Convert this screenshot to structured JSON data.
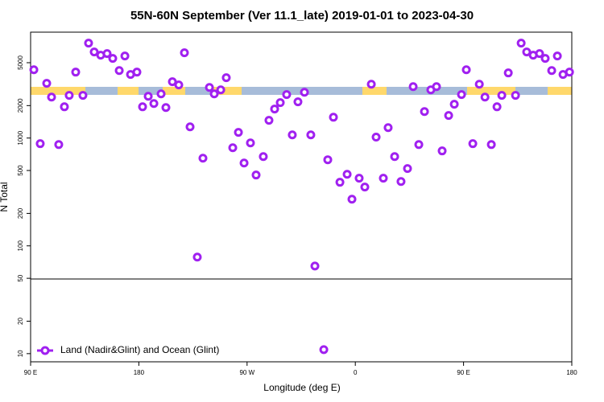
{
  "chart_data": {
    "type": "scatter",
    "title": "55N-60N September (Ver 11.1_late)   2019-01-01 to 2023-04-30",
    "x_label": "Longitude (deg E)",
    "y_label": "N Total",
    "log_y": true,
    "xlim": [
      90,
      540
    ],
    "xticks": [
      {
        "value": 90,
        "label": "90 E"
      },
      180,
      {
        "value": 270,
        "label": "90 W"
      },
      {
        "value": 360,
        "label": "0"
      },
      {
        "value": 450,
        "label": "90 E"
      },
      {
        "value": 540,
        "label": "180"
      }
    ],
    "ylim": [
      8.4,
      9600
    ],
    "yticks": [
      10,
      20,
      50,
      100,
      200,
      500,
      1000,
      2000,
      5000
    ],
    "legend": "bottom-left",
    "series": [
      {
        "name": "Land (Nadir&Glint) and Ocean (Glint)",
        "color": "#a020f0",
        "x": [
          92.7,
          98.0,
          103.4,
          107.4,
          113.4,
          118.1,
          122.1,
          127.5,
          133.5,
          138.2,
          142.9,
          148.3,
          153.6,
          158.3,
          163.7,
          168.4,
          173.1,
          178.4,
          183.1,
          187.8,
          192.5,
          198.5,
          202.5,
          207.9,
          213.2,
          217.9,
          222.6,
          228.6,
          233.3,
          238.7,
          242.7,
          248.1,
          252.7,
          258.1,
          262.8,
          267.5,
          272.8,
          277.5,
          283.5,
          288.2,
          292.9,
          297.6,
          302.9,
          307.6,
          312.3,
          317.7,
          323.0,
          326.4,
          333.8,
          337.1,
          341.8,
          347.2,
          353.2,
          357.2,
          363.2,
          367.9,
          373.3,
          377.3,
          383.3,
          387.3,
          392.7,
          398.0,
          403.4,
          408.1,
          412.8,
          417.5,
          422.8,
          427.5,
          432.2,
          437.6,
          442.3,
          448.3,
          452.3,
          457.7,
          463.1,
          467.8,
          473.1,
          477.8,
          481.8,
          487.2,
          493.2,
          497.9,
          502.5,
          507.9,
          513.2,
          517.9,
          523.3,
          528.0,
          532.7,
          538.1
        ],
        "values": [
          4300,
          887,
          3220,
          2400,
          870,
          1950,
          2490,
          4090,
          2490,
          7600,
          6290,
          5870,
          6080,
          5480,
          4230,
          5770,
          3890,
          4090,
          1950,
          2440,
          2090,
          2570,
          1920,
          3330,
          3110,
          6180,
          1270,
          78.7,
          650,
          2950,
          2570,
          2800,
          3630,
          813,
          1130,
          587,
          902,
          454,
          673,
          1460,
          1860,
          2130,
          2530,
          1070,
          2170,
          2660,
          1070,
          65,
          10.9,
          629,
          1560,
          389,
          461,
          271,
          424,
          351,
          3160,
          1020,
          424,
          1250,
          673,
          395,
          521,
          3000,
          870,
          1760,
          2800,
          3000,
          760,
          1620,
          2060,
          2530,
          4300,
          887,
          3160,
          2400,
          870,
          1950,
          2490,
          4020,
          2490,
          7600,
          6290,
          5870,
          6080,
          5480,
          4230,
          5770,
          3890,
          4090
        ]
      }
    ]
  }
}
